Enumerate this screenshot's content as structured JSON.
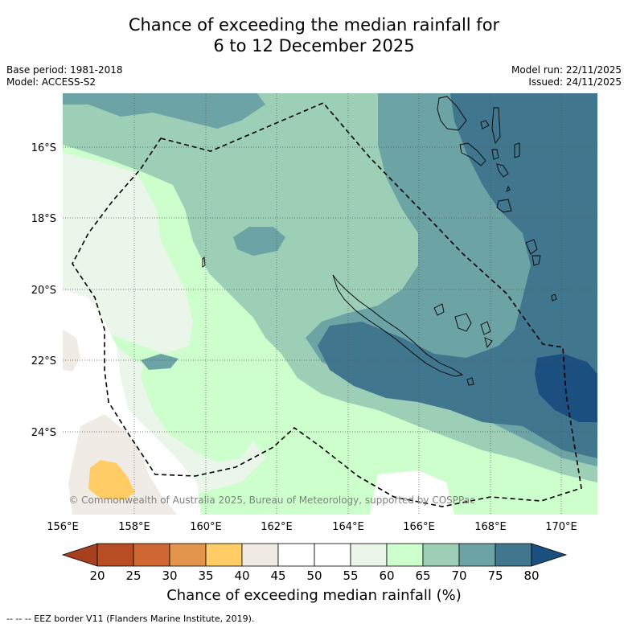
{
  "title_line1": "Chance of exceeding the median rainfall for",
  "title_line2": "6 to 12 December 2025",
  "base_period": "Base period: 1981-2018",
  "model": "Model: ACCESS-S2",
  "model_run": "Model run: 22/11/2025",
  "issued": "Issued: 24/11/2025",
  "lat_labels": [
    "16°S",
    "18°S",
    "20°S",
    "22°S",
    "24°S"
  ],
  "lon_labels": [
    "156°E",
    "158°E",
    "160°E",
    "162°E",
    "164°E",
    "166°E",
    "168°E",
    "170°E"
  ],
  "copyright": "© Commonwealth of Australia 2025, Bureau of Meteorology, supported by COSPPac",
  "colorbar": {
    "ticks": [
      "20",
      "25",
      "30",
      "35",
      "40",
      "45",
      "50",
      "55",
      "60",
      "65",
      "70",
      "75",
      "80"
    ],
    "label": "Chance of exceeding median rainfall (%)",
    "colors": [
      "#a8401f",
      "#b84c22",
      "#d06732",
      "#e3954e",
      "#ffcc66",
      "#f1ebe6",
      "#ffffff",
      "#ffffff",
      "#e9f6e9",
      "#ccffcc",
      "#9ccfb5",
      "#6ca3a5",
      "#40778f",
      "#1a4f80"
    ]
  },
  "legend_note": "--  --  -- EEZ border V11 (Flanders Marine Institute, 2019).",
  "map_colors": {
    "c35": "#ffcc66",
    "c40": "#f1ebe6",
    "c45": "#ffffff",
    "c55": "#e9f6e9",
    "c60": "#ccffcc",
    "c65": "#9ccfb5",
    "c70": "#6ca3a5",
    "c75": "#40778f",
    "c80": "#1a4f80"
  }
}
